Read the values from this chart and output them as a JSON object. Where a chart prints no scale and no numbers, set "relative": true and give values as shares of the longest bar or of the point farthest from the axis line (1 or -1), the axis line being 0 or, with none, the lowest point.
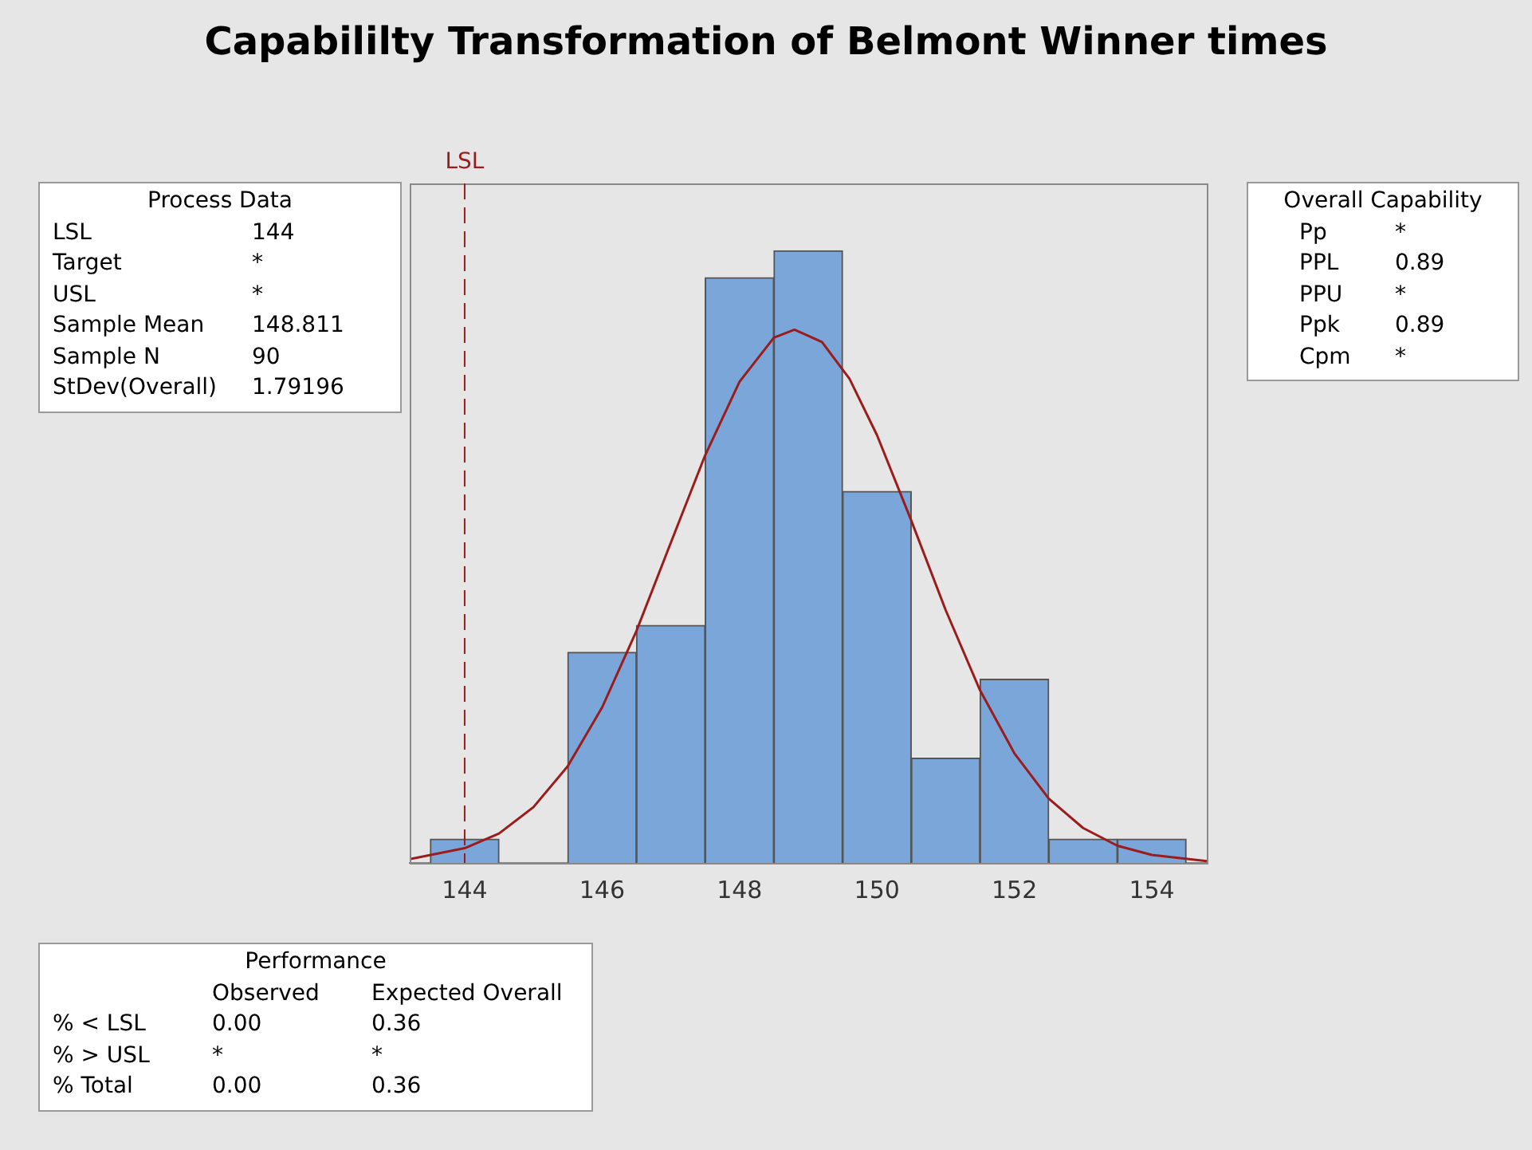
{
  "chart_data": {
    "type": "histogram",
    "title": "Capabililty Transformation of Belmont Winner times",
    "relative": true,
    "bins": [
      143.5,
      144.5,
      145.5,
      146.5,
      147.5,
      148.5,
      149.5,
      150.5,
      151.5,
      152.5,
      153.5,
      154.5
    ],
    "values": [
      0.039,
      0,
      0.344,
      0.388,
      0.956,
      1,
      0.607,
      0.171,
      0.3,
      0.039,
      0.039
    ],
    "color": "#7ba6d9",
    "series": [
      {
        "type": "line",
        "color": "#9b1c1c",
        "x": [
          143.2,
          144,
          144.5,
          145,
          145.5,
          146,
          146.5,
          147,
          147.5,
          148,
          148.5,
          148.8,
          149.2,
          149.6,
          150,
          150.5,
          151,
          151.5,
          152,
          152.5,
          153,
          153.5,
          154,
          154.8
        ],
        "values": [
          0.006,
          0.024,
          0.048,
          0.091,
          0.158,
          0.254,
          0.379,
          0.523,
          0.666,
          0.786,
          0.858,
          0.871,
          0.851,
          0.791,
          0.699,
          0.559,
          0.413,
          0.282,
          0.179,
          0.105,
          0.057,
          0.028,
          0.013,
          0.003
        ]
      }
    ],
    "xlim": [
      143.2,
      154.8
    ],
    "xticks": [
      144,
      146,
      148,
      150,
      152,
      154
    ],
    "ref_lines": [
      {
        "axis": "x",
        "value": 144,
        "label": "LSL",
        "color": "#9b1c1c",
        "line_style": "dashed"
      }
    ],
    "grid": false,
    "legend": false,
    "tick_labels": "x",
    "annotations": [
      "Process Data",
      "LSL\t144",
      "Target\t*",
      "USL\t*",
      "Sample Mean\t148.811",
      "Sample N\t90",
      "StDev(Overall)\t1.79196",
      "Overall Capability",
      "Pp\t*",
      "PPL\t0.89",
      "PPU\t*",
      "Ppk\t0.89",
      "Cpm\t*",
      "Performance",
      "\tObserved\tExpected Overall",
      "% < LSL\t0.00\t0.36",
      "% > USL\t*\t*",
      "% Total\t0.00\t0.36"
    ]
  }
}
